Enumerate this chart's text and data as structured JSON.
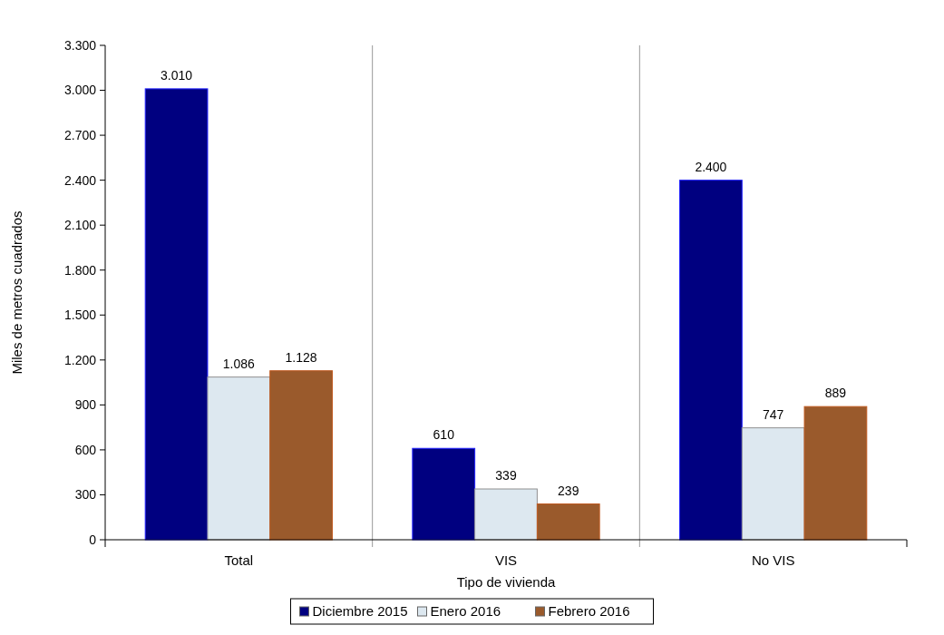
{
  "chart_data": {
    "type": "bar",
    "xlabel": "Tipo de vivienda",
    "ylabel": "Miles de metros cuadrados",
    "categories": [
      "Total",
      "VIS",
      "No VIS"
    ],
    "series": [
      {
        "name": "Diciembre 2015",
        "color": "#000080",
        "values": [
          3010,
          610,
          2400
        ],
        "value_labels": [
          "3.010",
          "610",
          "2.400"
        ]
      },
      {
        "name": "Enero 2016",
        "color": "#dde8f0",
        "values": [
          1086,
          339,
          747
        ],
        "value_labels": [
          "1.086",
          "339",
          "747"
        ]
      },
      {
        "name": "Febrero 2016",
        "color": "#9a5a2c",
        "values": [
          1128,
          239,
          889
        ],
        "value_labels": [
          "1.128",
          "239",
          "889"
        ]
      }
    ],
    "ylim": [
      0,
      3300
    ],
    "yticks": [
      0,
      300,
      600,
      900,
      {
        "value": 1200,
        "label": "1.200"
      },
      {
        "value": 1500,
        "label": "1.500"
      },
      {
        "value": 1800,
        "label": "1.800"
      },
      {
        "value": 2100,
        "label": "2.100"
      },
      {
        "value": 2400,
        "label": "2.400"
      },
      {
        "value": 2700,
        "label": "2.700"
      },
      {
        "value": 3000,
        "label": "3.000"
      },
      {
        "value": 3300,
        "label": "3.300"
      }
    ],
    "legend": "bottom",
    "grid": false
  }
}
